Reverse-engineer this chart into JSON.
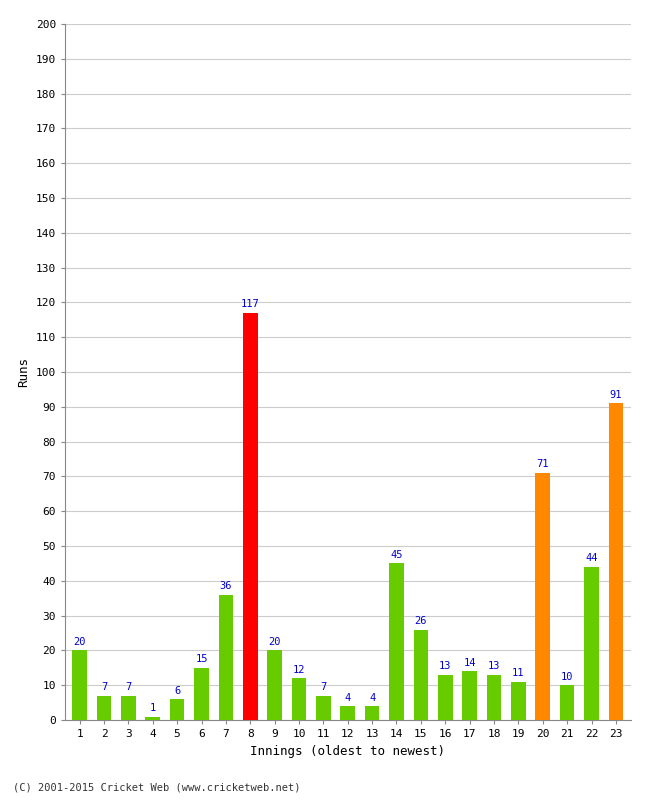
{
  "innings": [
    1,
    2,
    3,
    4,
    5,
    6,
    7,
    8,
    9,
    10,
    11,
    12,
    13,
    14,
    15,
    16,
    17,
    18,
    19,
    20,
    21,
    22,
    23
  ],
  "runs": [
    20,
    7,
    7,
    1,
    6,
    15,
    36,
    117,
    20,
    12,
    7,
    4,
    4,
    45,
    26,
    13,
    14,
    13,
    11,
    71,
    10,
    44,
    91
  ],
  "colors": [
    "#66cc00",
    "#66cc00",
    "#66cc00",
    "#66cc00",
    "#66cc00",
    "#66cc00",
    "#66cc00",
    "#ff0000",
    "#66cc00",
    "#66cc00",
    "#66cc00",
    "#66cc00",
    "#66cc00",
    "#66cc00",
    "#66cc00",
    "#66cc00",
    "#66cc00",
    "#66cc00",
    "#66cc00",
    "#ff8800",
    "#66cc00",
    "#66cc00",
    "#ff8800"
  ],
  "ylabel": "Runs",
  "xlabel": "Innings (oldest to newest)",
  "ylim": [
    0,
    200
  ],
  "yticks": [
    0,
    10,
    20,
    30,
    40,
    50,
    60,
    70,
    80,
    90,
    100,
    110,
    120,
    130,
    140,
    150,
    160,
    170,
    180,
    190,
    200
  ],
  "footer": "(C) 2001-2015 Cricket Web (www.cricketweb.net)",
  "label_color": "#0000cc",
  "background_color": "#ffffff",
  "grid_color": "#cccccc",
  "bar_width": 0.6,
  "figsize": [
    6.5,
    8.0
  ],
  "dpi": 100
}
